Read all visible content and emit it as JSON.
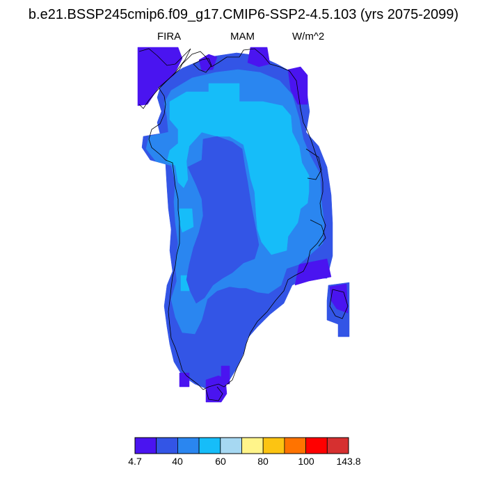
{
  "title": "b.e21.BSSP245cmip6.f09_g17.CMIP6-SSP2-4.5.103 (yrs 2075-2099)",
  "subtitle": {
    "left": "FIRA",
    "center": "MAM",
    "right": "W/m^2"
  },
  "colorbar": {
    "colors": [
      "#4a14f0",
      "#3355e6",
      "#2a86f0",
      "#16bdf9",
      "#a6d8f2",
      "#fff48a",
      "#fcc412",
      "#ff7300",
      "#ff0000",
      "#d63030"
    ],
    "labels": [
      "4.7",
      "40",
      "60",
      "80",
      "100",
      "143.8"
    ]
  },
  "map": {
    "region": "Greenland",
    "field_colors": {
      "bin1": "#4a14f0",
      "bin2": "#3355e6",
      "bin3": "#2a86f0",
      "bin4": "#16bdf9"
    }
  }
}
